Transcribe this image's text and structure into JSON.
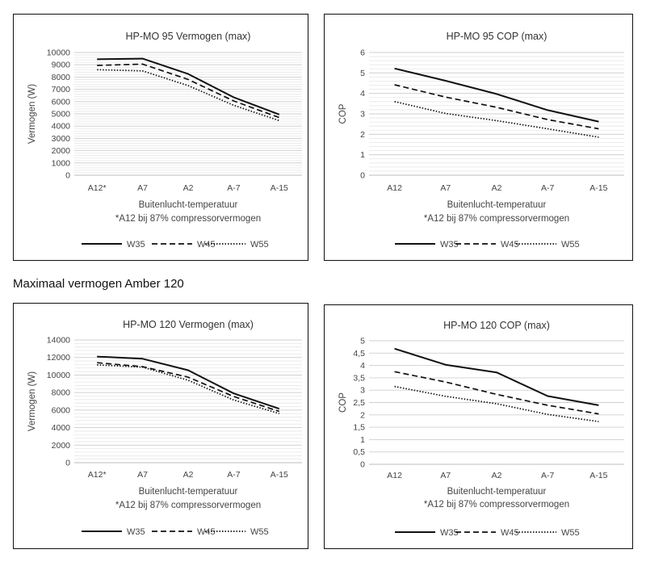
{
  "section_heading": "Maximaal vermogen Amber 120",
  "chart_data": [
    {
      "type": "line",
      "title": "HP-MO 95 Vermogen (max)",
      "ylabel": "Vermogen (W)",
      "xlabel": "Buitenlucht-temperatuur",
      "note": "*A12 bij 87% compressorvermogen",
      "categories": [
        "A12*",
        "A7",
        "A2",
        "A-7",
        "A-15"
      ],
      "ylim": [
        0,
        10000
      ],
      "ystep": 1000,
      "yticks": [
        "0",
        "1000",
        "2000",
        "3000",
        "4000",
        "5000",
        "6000",
        "7000",
        "8000",
        "9000",
        "10000"
      ],
      "grid": true,
      "legend": "bottom",
      "series": [
        {
          "name": "W35",
          "style": "solid",
          "values": [
            9450,
            9500,
            8250,
            6350,
            4950
          ]
        },
        {
          "name": "W45",
          "style": "dashed",
          "values": [
            8950,
            9050,
            7800,
            6050,
            4700
          ]
        },
        {
          "name": "W55",
          "style": "dotted",
          "values": [
            8600,
            8500,
            7300,
            5700,
            4450
          ]
        }
      ]
    },
    {
      "type": "line",
      "title": "HP-MO 95 COP (max)",
      "ylabel": "COP",
      "xlabel": "Buitenlucht-temperatuur",
      "note": "*A12 bij 87% compressorvermogen",
      "categories": [
        "A12",
        "A7",
        "A2",
        "A-7",
        "A-15"
      ],
      "ylim": [
        0,
        6
      ],
      "ystep": 1,
      "yticks": [
        "0",
        "1",
        "2",
        "3",
        "4",
        "5",
        "6"
      ],
      "grid": true,
      "legend": "bottom",
      "series": [
        {
          "name": "W35",
          "style": "solid",
          "values": [
            5.22,
            4.62,
            3.97,
            3.18,
            2.62
          ]
        },
        {
          "name": "W45",
          "style": "dashed",
          "values": [
            4.42,
            3.82,
            3.32,
            2.72,
            2.27
          ]
        },
        {
          "name": "W55",
          "style": "dotted",
          "values": [
            3.6,
            3.02,
            2.67,
            2.27,
            1.86
          ]
        }
      ]
    },
    {
      "type": "line",
      "title": "HP-MO 120 Vermogen (max)",
      "ylabel": "Vermogen (W)",
      "xlabel": "Buitenlucht-temperatuur",
      "note": "*A12 bij 87% compressorvermogen",
      "categories": [
        "A12*",
        "A7",
        "A2",
        "A-7",
        "A-15"
      ],
      "ylim": [
        0,
        14000
      ],
      "ystep": 2000,
      "yticks": [
        "0",
        "2000",
        "4000",
        "6000",
        "8000",
        "10000",
        "12000",
        "14000"
      ],
      "grid": true,
      "legend": "bottom",
      "series": [
        {
          "name": "W35",
          "style": "solid",
          "values": [
            12100,
            11850,
            10550,
            7900,
            6150
          ]
        },
        {
          "name": "W45",
          "style": "dashed",
          "values": [
            11400,
            10950,
            9750,
            7550,
            5850
          ]
        },
        {
          "name": "W55",
          "style": "dotted",
          "values": [
            11150,
            10900,
            9400,
            7150,
            5600
          ]
        }
      ]
    },
    {
      "type": "line",
      "title": "HP-MO 120 COP (max)",
      "ylabel": "COP",
      "xlabel": "Buitenlucht-temperatuur",
      "note": "*A12 bij 87% compressorvermogen",
      "categories": [
        "A12",
        "A7",
        "A2",
        "A-7",
        "A-15"
      ],
      "ylim": [
        0,
        5
      ],
      "ystep": 0.5,
      "yticks": [
        "0",
        "0,5",
        "1",
        "1,5",
        "2",
        "2,5",
        "3",
        "3,5",
        "4",
        "4,5",
        "5"
      ],
      "grid": true,
      "legend": "bottom",
      "series": [
        {
          "name": "W35",
          "style": "solid",
          "values": [
            4.68,
            4.03,
            3.72,
            2.76,
            2.39
          ]
        },
        {
          "name": "W45",
          "style": "dashed",
          "values": [
            3.75,
            3.33,
            2.83,
            2.39,
            2.04
          ]
        },
        {
          "name": "W55",
          "style": "dotted",
          "values": [
            3.15,
            2.75,
            2.45,
            2.02,
            1.73
          ]
        }
      ]
    }
  ]
}
